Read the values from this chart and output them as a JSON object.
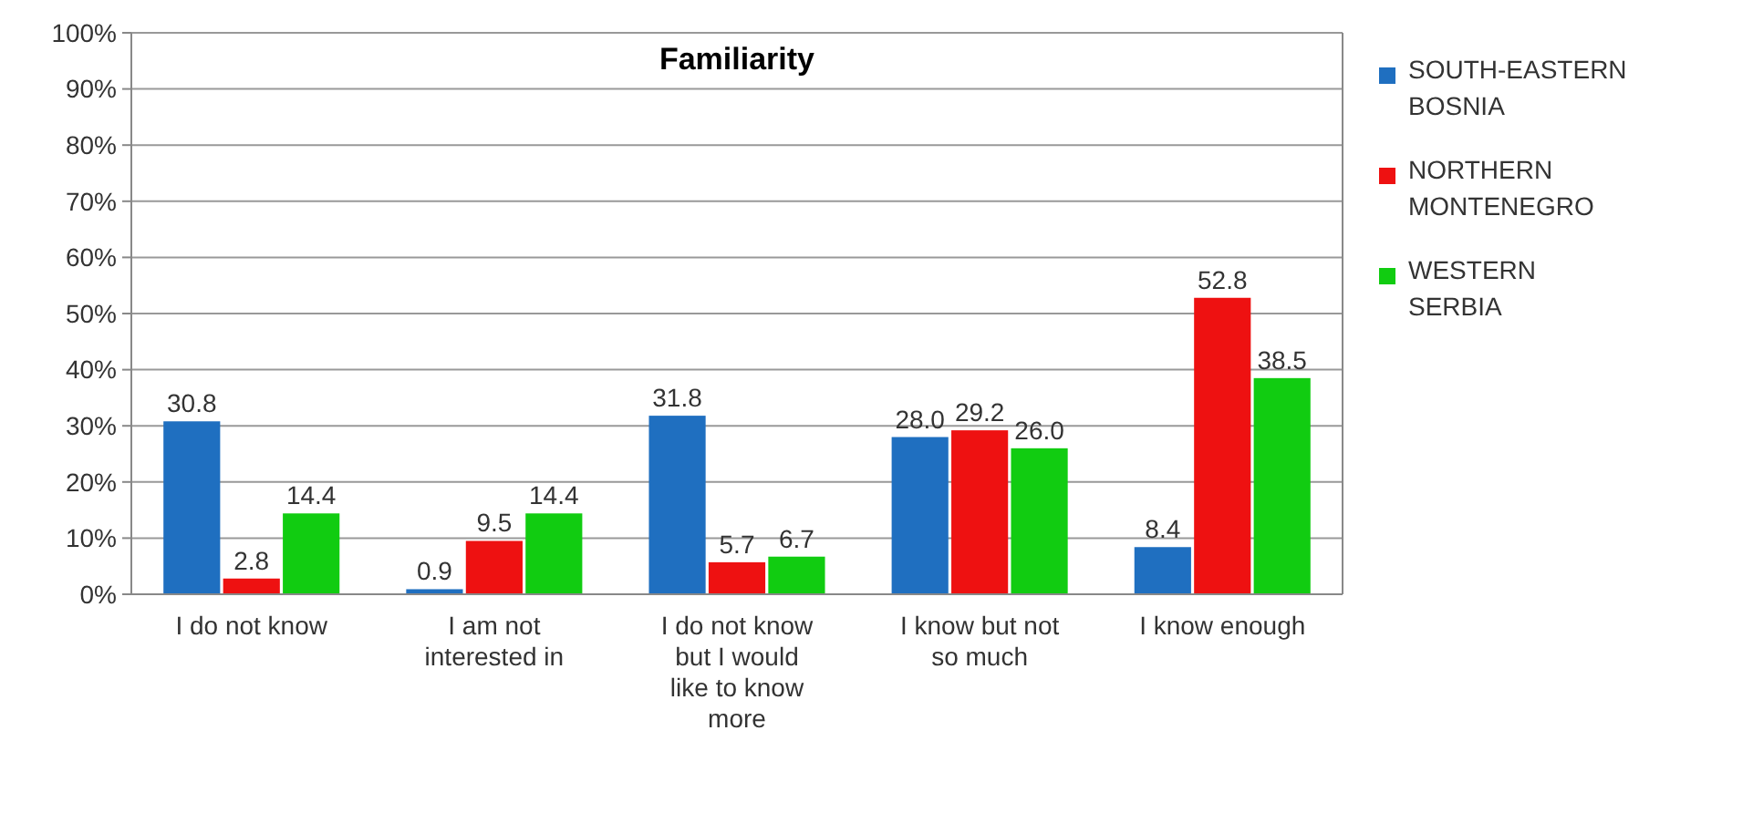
{
  "chart_data": {
    "type": "bar",
    "title": "Familiarity",
    "categories": [
      "I do not know",
      "I am not interested in",
      "I do not know but I would like to know more",
      "I know but not so much",
      "I know enough"
    ],
    "series": [
      {
        "name": "SOUTH-EASTERN BOSNIA",
        "color": "#1f6fc0",
        "values": [
          30.8,
          0.9,
          31.8,
          28.0,
          8.4
        ]
      },
      {
        "name": "NORTHERN MONTENEGRO",
        "color": "#ee1111",
        "values": [
          2.8,
          9.5,
          5.7,
          29.2,
          52.8
        ]
      },
      {
        "name": "WESTERN SERBIA",
        "color": "#11cc11",
        "values": [
          14.4,
          14.4,
          6.7,
          26.0,
          38.5
        ]
      }
    ],
    "value_labels": [
      [
        "30.8",
        "0.9",
        "31.8",
        "28.0",
        "8.4"
      ],
      [
        "2.8",
        "9.5",
        "5.7",
        "29.2",
        "52.8"
      ],
      [
        "14.4",
        "14.4",
        "6.7",
        "26.0",
        "38.5"
      ]
    ],
    "ylim": [
      0,
      100
    ],
    "yticks": [
      {
        "value": 0,
        "label": "0%"
      },
      {
        "value": 10,
        "label": "10%"
      },
      {
        "value": 20,
        "label": "20%"
      },
      {
        "value": 30,
        "label": "30%"
      },
      {
        "value": 40,
        "label": "40%"
      },
      {
        "value": 50,
        "label": "50%"
      },
      {
        "value": 60,
        "label": "60%"
      },
      {
        "value": 70,
        "label": "70%"
      },
      {
        "value": 80,
        "label": "80%"
      },
      {
        "value": 90,
        "label": "90%"
      },
      {
        "value": 100,
        "label": "100%"
      }
    ],
    "grid": "y",
    "legend": "right"
  }
}
